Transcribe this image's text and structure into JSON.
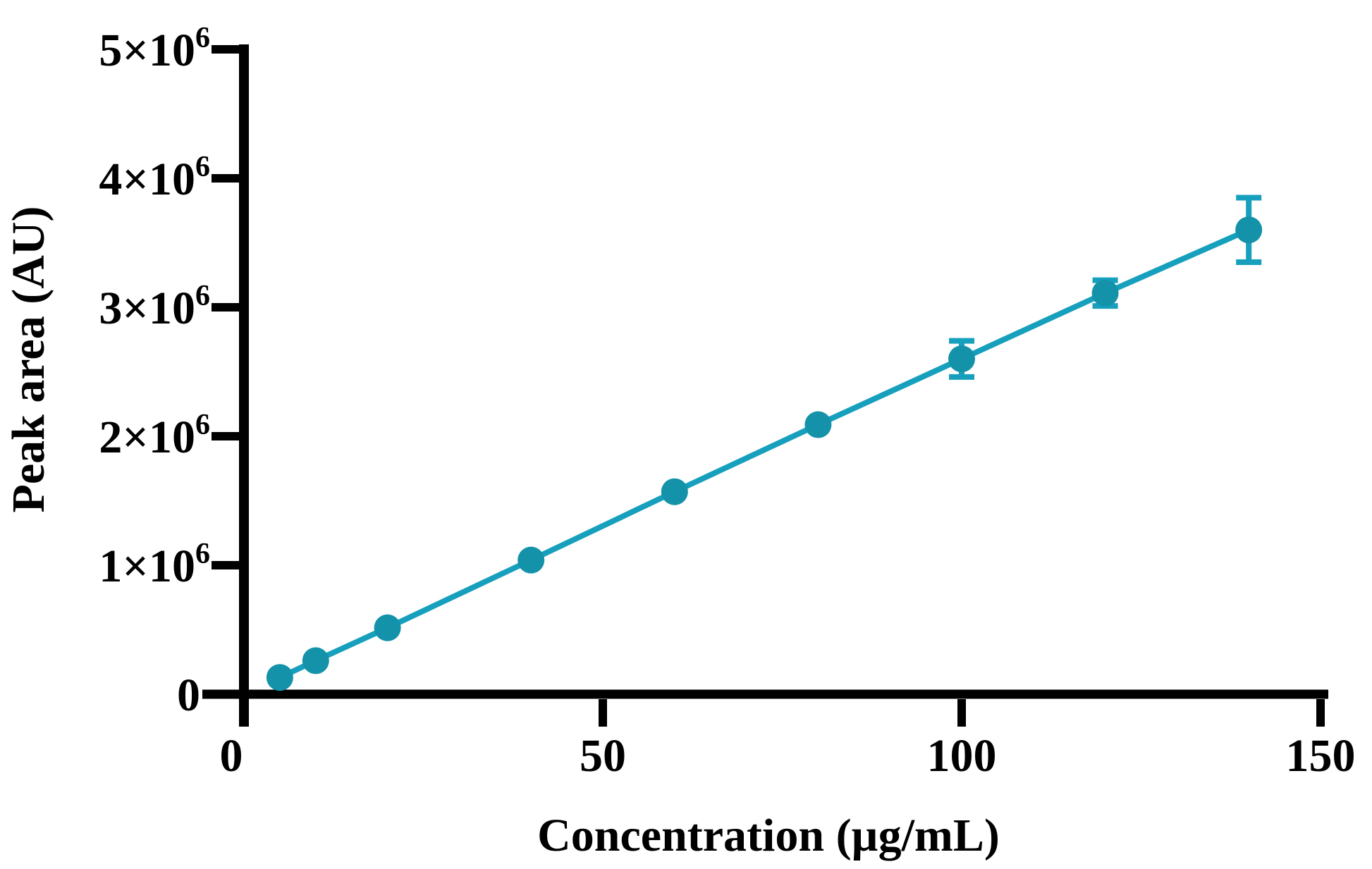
{
  "figure": {
    "background_color": "#ffffff",
    "axis_color": "#000000",
    "text_color": "#000000"
  },
  "chart_data": {
    "type": "line",
    "title": "",
    "xlabel": "Concentration (µg/mL)",
    "ylabel": "Peak area (AU)",
    "x": [
      5,
      10,
      20,
      40,
      60,
      80,
      100,
      120,
      140
    ],
    "y": [
      130000,
      260000,
      515000,
      1040000,
      1570000,
      2090000,
      2600000,
      3110000,
      3600000
    ],
    "y_err": [
      0,
      0,
      0,
      0,
      0,
      0,
      140000,
      100000,
      250000
    ],
    "xlim": [
      0,
      150
    ],
    "ylim": [
      0,
      5000000
    ],
    "grid": false,
    "legend": null,
    "marker": "circle",
    "marker_color": "#1492aa",
    "line_color": "#16a0bd",
    "error_bar_color": "#16a0bd",
    "x_ticks": [
      {
        "value": 0,
        "label": "0"
      },
      {
        "value": 50,
        "label": "50"
      },
      {
        "value": 100,
        "label": "100"
      },
      {
        "value": 150,
        "label": "150"
      }
    ],
    "y_ticks": [
      {
        "value": 0,
        "base": "0",
        "sup": ""
      },
      {
        "value": 1000000,
        "base": "1×10",
        "sup": "6"
      },
      {
        "value": 2000000,
        "base": "2×10",
        "sup": "6"
      },
      {
        "value": 3000000,
        "base": "3×10",
        "sup": "6"
      },
      {
        "value": 4000000,
        "base": "4×10",
        "sup": "6"
      },
      {
        "value": 5000000,
        "base": "5×10",
        "sup": "6"
      }
    ]
  }
}
